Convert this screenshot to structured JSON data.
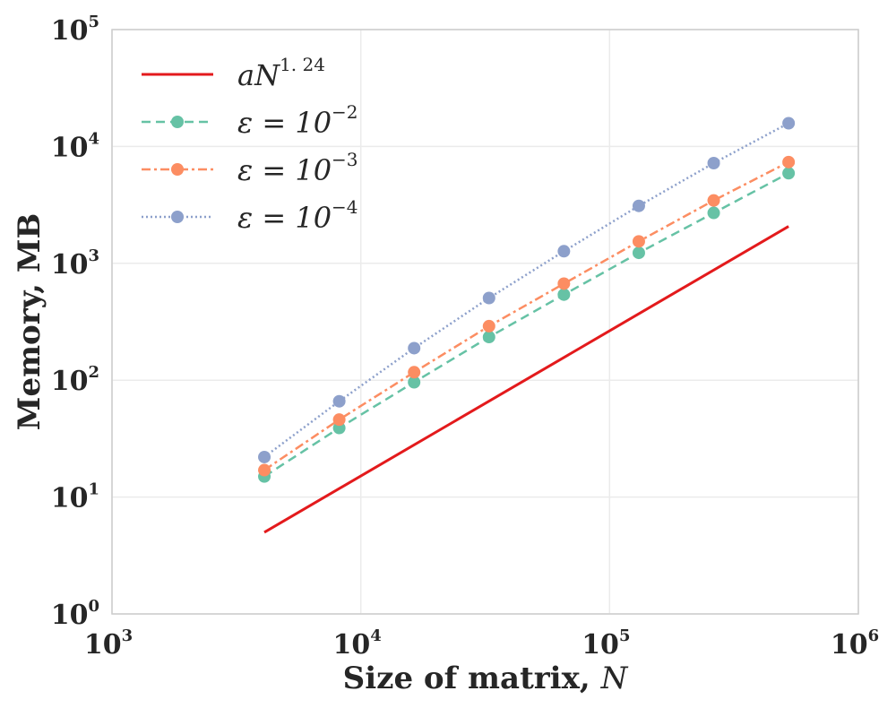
{
  "chart_data": {
    "type": "line",
    "xscale": "log",
    "yscale": "log",
    "xlim": [
      1000,
      1000000
    ],
    "ylim": [
      1,
      100000
    ],
    "grid": true,
    "legend_position": "top-left",
    "xlabel": "Size of matrix,",
    "xlabel_var": "N",
    "ylabel": "Memory, MB",
    "xticks": [
      {
        "value": 1000,
        "base": "10",
        "exp": "3"
      },
      {
        "value": 10000,
        "base": "10",
        "exp": "4"
      },
      {
        "value": 100000,
        "base": "10",
        "exp": "5"
      },
      {
        "value": 1000000,
        "base": "10",
        "exp": "6"
      }
    ],
    "yticks": [
      {
        "value": 1,
        "base": "10",
        "exp": "0"
      },
      {
        "value": 10,
        "base": "10",
        "exp": "1"
      },
      {
        "value": 100,
        "base": "10",
        "exp": "2"
      },
      {
        "value": 1000,
        "base": "10",
        "exp": "3"
      },
      {
        "value": 10000,
        "base": "10",
        "exp": "4"
      },
      {
        "value": 100000,
        "base": "10",
        "exp": "5"
      }
    ],
    "x": [
      4096,
      8192,
      16384,
      32768,
      65536,
      131072,
      262144,
      524288
    ],
    "series": [
      {
        "name": "aN",
        "name_exp": "1. 24",
        "color": "#e31a1c",
        "style": "solid",
        "markers": false,
        "x": [
          4096,
          524288
        ],
        "values": [
          5.0,
          2070
        ]
      },
      {
        "name": "ε = 10",
        "name_exp": "−2",
        "color": "#66c2a5",
        "style": "dashed",
        "markers": true,
        "values": [
          15,
          39,
          96,
          234,
          540,
          1230,
          2700,
          5900
        ]
      },
      {
        "name": "ε = 10",
        "name_exp": "−3",
        "color": "#fc8d62",
        "style": "dashdot",
        "markers": true,
        "values": [
          17,
          46,
          117,
          290,
          670,
          1540,
          3450,
          7350
        ]
      },
      {
        "name": "ε = 10",
        "name_exp": "−4",
        "color": "#8da0cb",
        "style": "dotted",
        "markers": true,
        "values": [
          22,
          66,
          188,
          505,
          1270,
          3100,
          7200,
          15800
        ]
      }
    ]
  }
}
